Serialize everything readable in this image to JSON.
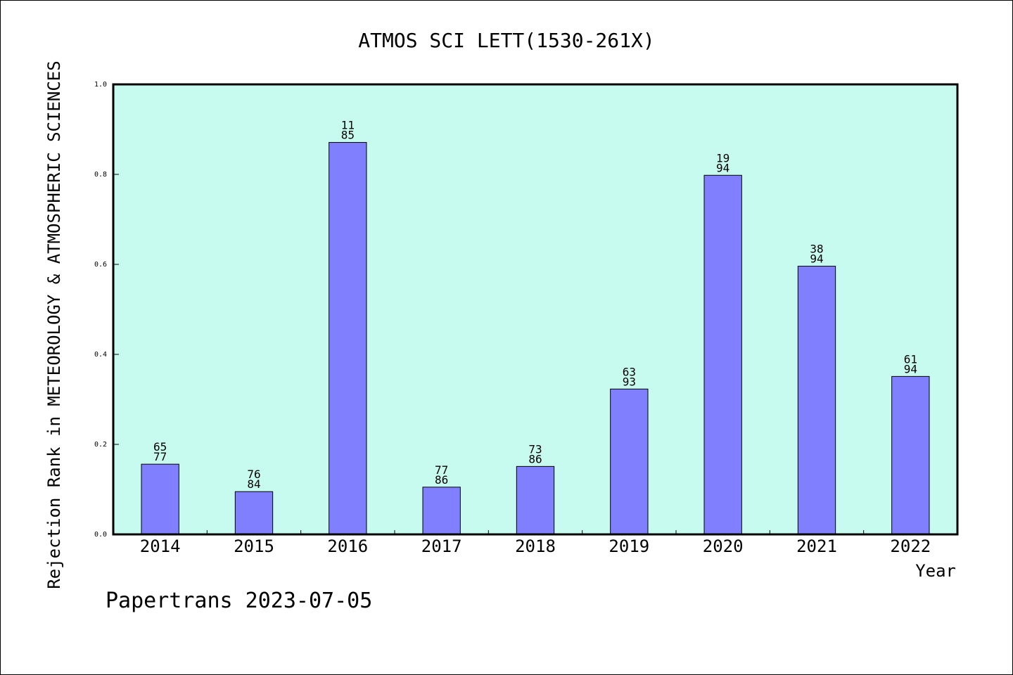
{
  "footer": {
    "text": "Papertrans 2023-07-05"
  },
  "colors": {
    "plot_bg": "#c8fbef",
    "bar": "#8080ff",
    "bar_edge": "#000000"
  },
  "chart_data": {
    "type": "bar",
    "title": "ATMOS SCI LETT(1530-261X)",
    "xlabel": "Year",
    "ylabel": "Rejection Rank in METEOROLOGY & ATMOSPHERIC SCIENCES",
    "ylim": [
      0,
      1.0
    ],
    "yticks": [
      "0.0",
      "0.2",
      "0.4",
      "0.6",
      "0.8",
      "1.0"
    ],
    "categories": [
      "2014",
      "2015",
      "2016",
      "2017",
      "2018",
      "2019",
      "2020",
      "2021",
      "2022"
    ],
    "ranks": [
      "65",
      "76",
      "11",
      "77",
      "73",
      "63",
      "19",
      "38",
      "61"
    ],
    "totals": [
      "77",
      "84",
      "85",
      "86",
      "86",
      "93",
      "94",
      "94",
      "94"
    ],
    "values": [
      0.156,
      0.095,
      0.871,
      0.105,
      0.151,
      0.323,
      0.798,
      0.596,
      0.351
    ],
    "grid": false,
    "legend": "none"
  }
}
